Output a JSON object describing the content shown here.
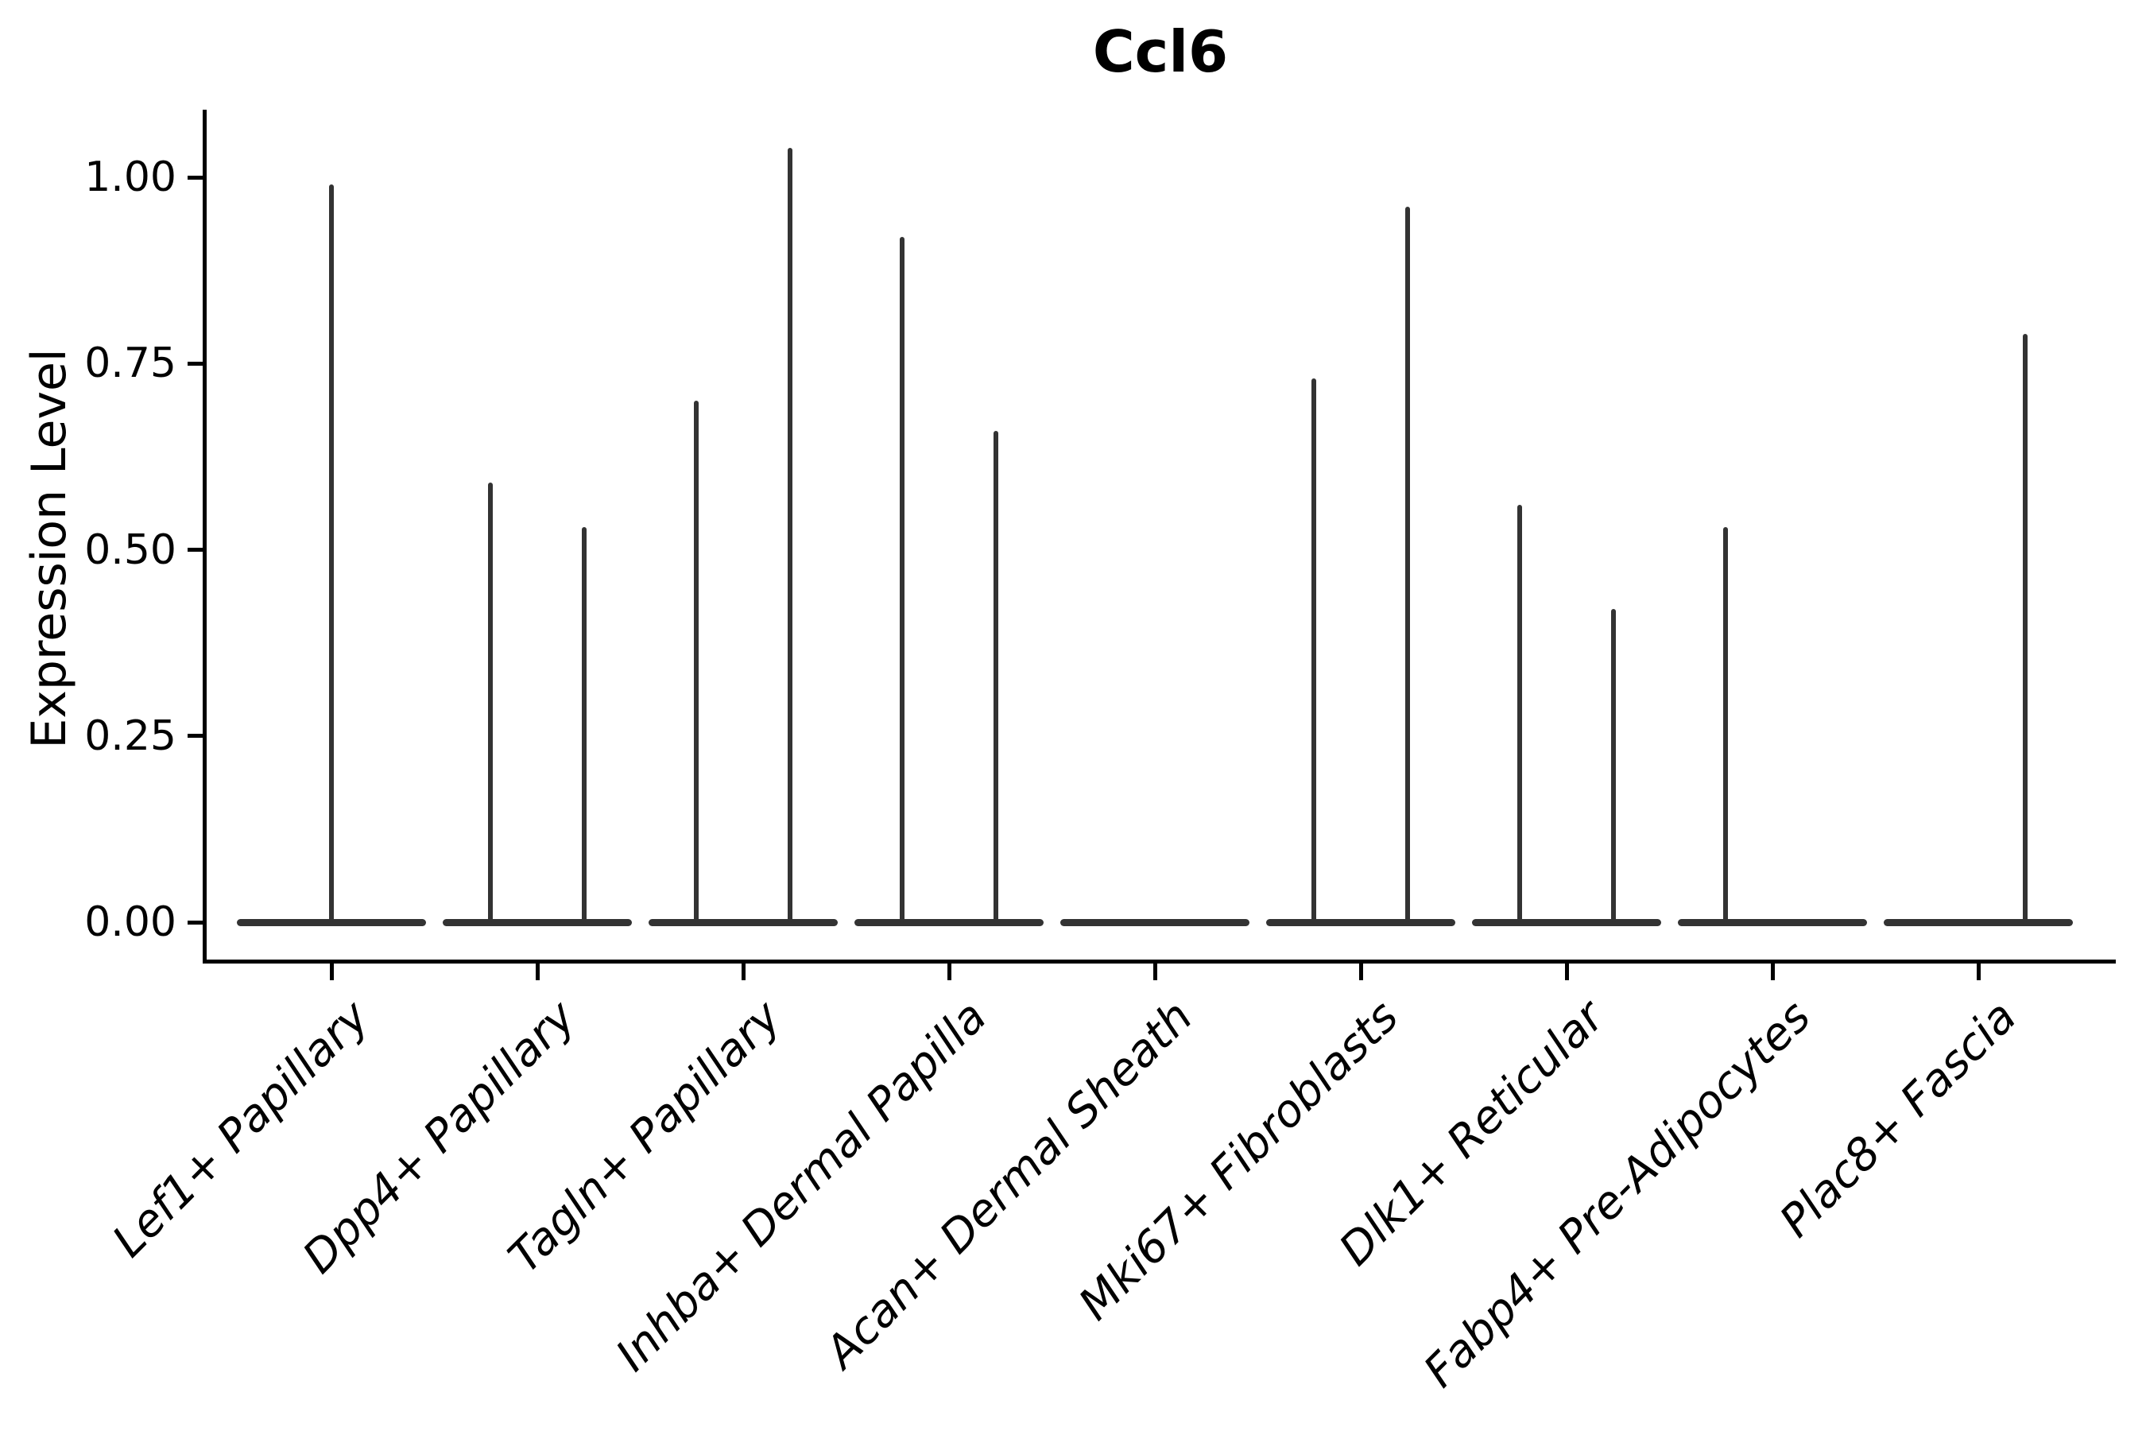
{
  "figure": {
    "title": "Ccl6"
  },
  "chart_data": {
    "type": "violin",
    "title": "Ccl6",
    "xlabel": "",
    "ylabel": "Expression Level",
    "legend": null,
    "grid": false,
    "categories": [
      "Lef1+ Papillary",
      "Dpp4+ Papillary",
      "Tagln+ Papillary",
      "Inhba+ Dermal Papilla",
      "Acan+ Dermal Sheath",
      "Mki67+ Fibroblasts",
      "Dlk1+ Reticular",
      "Fabp4+ Pre-Adipocytes",
      "Plac8+ Fascia"
    ],
    "y_axis": {
      "ticks": [
        {
          "value": 1.0,
          "label": "1.00"
        },
        {
          "value": 0.75,
          "label": "0.75"
        },
        {
          "value": 0.5,
          "label": "0.50"
        },
        {
          "value": 0.25,
          "label": "0.25"
        },
        {
          "value": 0.0,
          "label": "0.00"
        }
      ],
      "data_range": [
        0,
        1.04
      ]
    },
    "description": "Each category shows a violin collapsed to a flat bar at expression 0 with thin spikes rising to the maximum expression value; spikes sit at the category center or dodged left/right for two hidden groups.",
    "violins": [
      {
        "category": "Lef1+ Papillary",
        "spikes": [
          {
            "group": "center",
            "max": 0.99
          }
        ]
      },
      {
        "category": "Dpp4+ Papillary",
        "spikes": [
          {
            "group": "left",
            "max": 0.59
          },
          {
            "group": "right",
            "max": 0.53
          }
        ]
      },
      {
        "category": "Tagln+ Papillary",
        "spikes": [
          {
            "group": "left",
            "max": 0.7
          },
          {
            "group": "right",
            "max": 1.04
          }
        ]
      },
      {
        "category": "Inhba+ Dermal Papilla",
        "spikes": [
          {
            "group": "left",
            "max": 0.92
          },
          {
            "group": "right",
            "max": 0.66
          }
        ]
      },
      {
        "category": "Acan+ Dermal Sheath",
        "spikes": []
      },
      {
        "category": "Mki67+ Fibroblasts",
        "spikes": [
          {
            "group": "left",
            "max": 0.73
          },
          {
            "group": "right",
            "max": 0.96
          }
        ]
      },
      {
        "category": "Dlk1+ Reticular",
        "spikes": [
          {
            "group": "left",
            "max": 0.56
          },
          {
            "group": "right",
            "max": 0.42
          }
        ]
      },
      {
        "category": "Fabp4+ Pre-Adipocytes",
        "spikes": [
          {
            "group": "left",
            "max": 0.53
          }
        ]
      },
      {
        "category": "Plac8+ Fascia",
        "spikes": [
          {
            "group": "right",
            "max": 0.79
          }
        ]
      }
    ],
    "colors": {
      "violin_stroke": "#333333",
      "axis": "#000000",
      "background": "#ffffff"
    }
  }
}
